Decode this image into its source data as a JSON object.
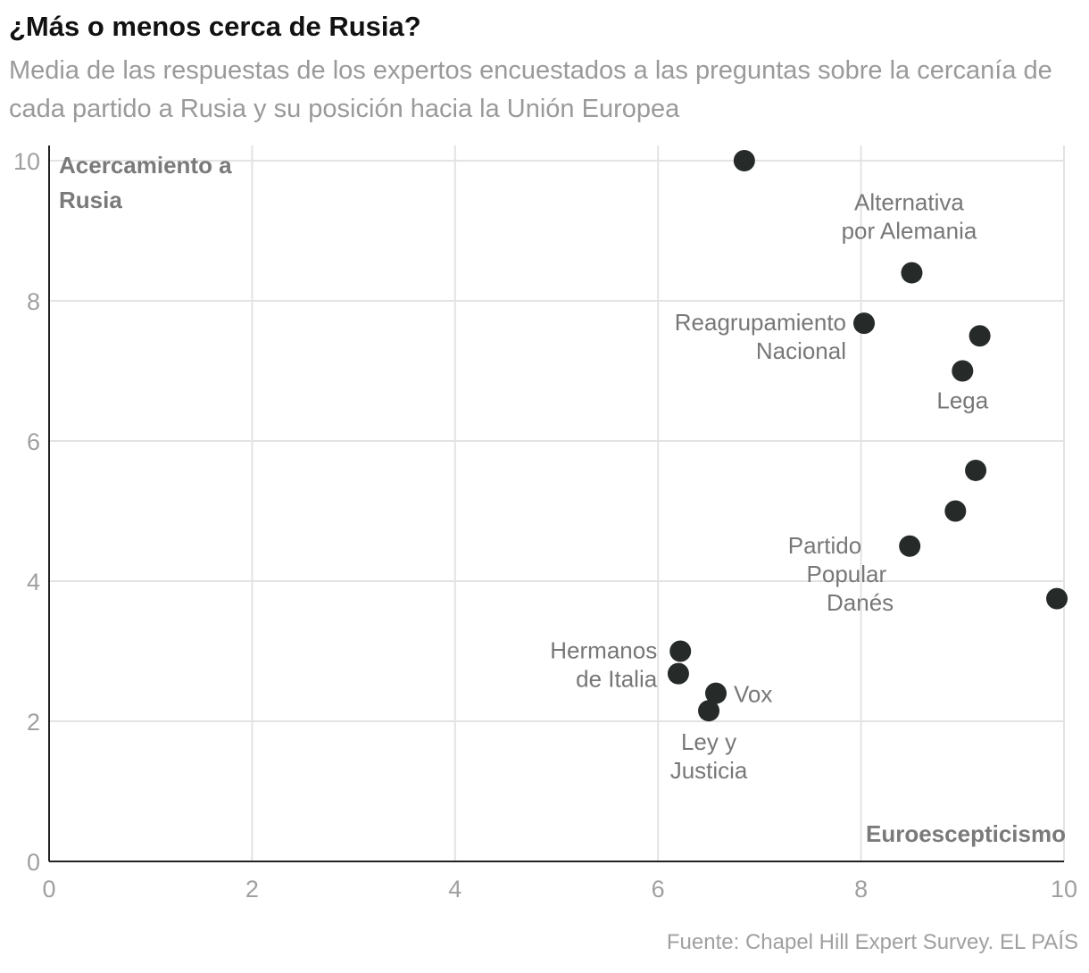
{
  "header": {
    "title": "¿Más o menos cerca de Rusia?",
    "subtitle": "Media de las respuestas de los expertos encuestados a las preguntas sobre la cercanía de cada partido a Rusia y su posición hacia la Unión Europea"
  },
  "footer": {
    "source": "Fuente: Chapel Hill Expert Survey. EL PAÍS"
  },
  "colors": {
    "dot": "#262b29",
    "grid": "#e3e3e3",
    "axis": "#222222",
    "tick_text": "#a0a0a0",
    "label_text": "#777777",
    "axis_title": "#7a7a7a"
  },
  "chart_data": {
    "type": "scatter",
    "xlim": [
      0,
      10
    ],
    "ylim": [
      0,
      10
    ],
    "x_ticks": [
      0,
      2,
      4,
      6,
      8,
      10
    ],
    "y_ticks": [
      0,
      2,
      4,
      6,
      8,
      10
    ],
    "xlabel": "Euroescepticismo",
    "ylabel": "Acercamiento a Rusia",
    "grid": true,
    "points": [
      {
        "x": 6.85,
        "y": 10.0,
        "label": ""
      },
      {
        "x": 8.5,
        "y": 8.4,
        "label": "Alternativa por Alemania"
      },
      {
        "x": 8.03,
        "y": 7.68,
        "label": "Reagrupamiento Nacional"
      },
      {
        "x": 9.17,
        "y": 7.5,
        "label": ""
      },
      {
        "x": 9.0,
        "y": 7.0,
        "label": "Lega"
      },
      {
        "x": 9.13,
        "y": 5.58,
        "label": ""
      },
      {
        "x": 8.93,
        "y": 5.0,
        "label": ""
      },
      {
        "x": 8.48,
        "y": 4.5,
        "label": "Partido Popular Danés"
      },
      {
        "x": 9.93,
        "y": 3.75,
        "label": ""
      },
      {
        "x": 6.22,
        "y": 3.0,
        "label": "Hermanos de Italia"
      },
      {
        "x": 6.2,
        "y": 2.68,
        "label": ""
      },
      {
        "x": 6.57,
        "y": 2.4,
        "label": "Vox"
      },
      {
        "x": 6.5,
        "y": 2.15,
        "label": "Ley y Justicia"
      }
    ]
  }
}
